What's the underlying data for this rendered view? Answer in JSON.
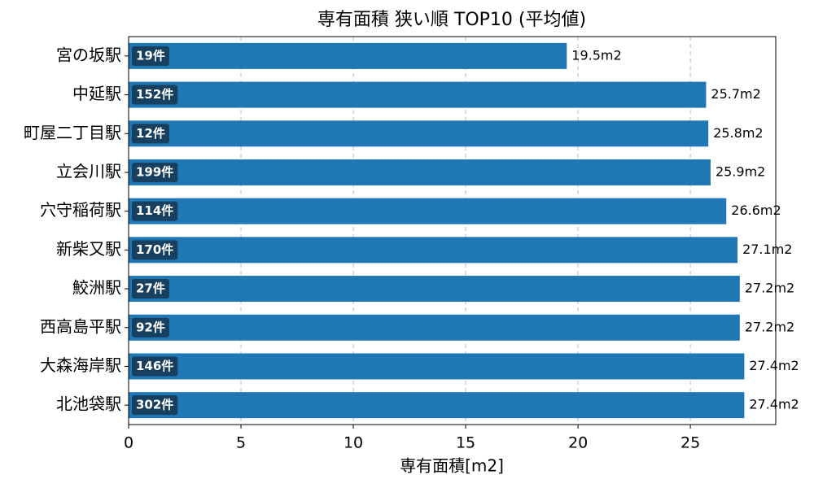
{
  "chart_data": {
    "type": "barh",
    "title": "専有面積 狭い順 TOP10 (平均値)",
    "x_label": "専有面積[m2]",
    "categories": [
      "宮の坂駅",
      "中延駅",
      "町屋二丁目駅",
      "立会川駅",
      "穴守稲荷駅",
      "新柴又駅",
      "鮫洲駅",
      "西高島平駅",
      "大森海岸駅",
      "北池袋駅"
    ],
    "values": [
      19.5,
      25.7,
      25.8,
      25.9,
      26.6,
      27.1,
      27.2,
      27.2,
      27.4,
      27.4
    ],
    "value_labels": [
      "19.5m2",
      "25.7m2",
      "25.8m2",
      "25.9m2",
      "26.6m2",
      "27.1m2",
      "27.2m2",
      "27.2m2",
      "27.4m2",
      "27.4m2"
    ],
    "count_labels": [
      "19件",
      "152件",
      "12件",
      "199件",
      "114件",
      "170件",
      "27件",
      "92件",
      "146件",
      "302件"
    ],
    "color": "#1f77b4",
    "badge_color": "#173f5f",
    "xlim": [
      0,
      28.8
    ],
    "xticks": [
      0,
      5,
      10,
      15,
      20,
      25
    ],
    "grid": true
  }
}
